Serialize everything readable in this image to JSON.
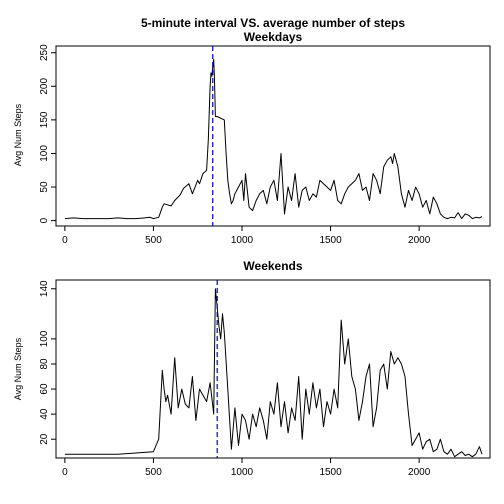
{
  "chart_data": [
    {
      "type": "line",
      "title": "5-minute interval VS. average number of steps",
      "subtitle": "Weekdays",
      "xlabel": "",
      "ylabel": "Avg Num Steps",
      "xlim": [
        -50,
        2400
      ],
      "ylim": [
        -8,
        260
      ],
      "xticks": [
        0,
        500,
        1000,
        1500,
        2000
      ],
      "yticks": [
        0,
        50,
        100,
        150,
        200,
        250
      ],
      "vline": {
        "x": 835,
        "color": "#0000cc",
        "style": "dashed"
      },
      "series": [
        {
          "color": "#000000",
          "x": [
            0,
            50,
            100,
            150,
            200,
            250,
            300,
            350,
            400,
            450,
            480,
            500,
            530,
            550,
            560,
            600,
            620,
            650,
            670,
            700,
            720,
            750,
            760,
            780,
            800,
            810,
            815,
            820,
            825,
            830,
            835,
            840,
            845,
            850,
            860,
            900,
            910,
            920,
            930,
            940,
            950,
            960,
            980,
            1000,
            1010,
            1020,
            1040,
            1060,
            1080,
            1100,
            1120,
            1140,
            1160,
            1180,
            1200,
            1220,
            1240,
            1260,
            1280,
            1300,
            1320,
            1340,
            1360,
            1380,
            1400,
            1420,
            1440,
            1460,
            1480,
            1500,
            1520,
            1540,
            1560,
            1580,
            1600,
            1620,
            1640,
            1660,
            1680,
            1700,
            1720,
            1740,
            1760,
            1780,
            1800,
            1820,
            1840,
            1850,
            1860,
            1880,
            1900,
            1920,
            1940,
            1960,
            1980,
            2000,
            2020,
            2040,
            2060,
            2080,
            2100,
            2120,
            2140,
            2160,
            2180,
            2200,
            2220,
            2240,
            2260,
            2280,
            2300,
            2320,
            2340,
            2355
          ],
          "y": [
            3,
            4,
            3,
            3,
            3,
            3,
            4,
            3,
            3,
            4,
            5,
            3,
            5,
            20,
            25,
            22,
            30,
            38,
            48,
            55,
            40,
            60,
            55,
            70,
            75,
            120,
            160,
            200,
            220,
            215,
            230,
            240,
            210,
            155,
            155,
            150,
            100,
            60,
            40,
            25,
            30,
            40,
            50,
            60,
            30,
            70,
            20,
            15,
            30,
            40,
            45,
            25,
            50,
            60,
            30,
            100,
            10,
            50,
            30,
            70,
            20,
            45,
            50,
            30,
            40,
            35,
            60,
            55,
            50,
            45,
            60,
            30,
            25,
            40,
            50,
            55,
            60,
            70,
            45,
            50,
            30,
            70,
            60,
            40,
            80,
            90,
            95,
            85,
            100,
            80,
            40,
            20,
            45,
            30,
            50,
            40,
            20,
            30,
            10,
            35,
            25,
            10,
            5,
            3,
            5,
            4,
            12,
            3,
            10,
            8,
            3,
            5,
            4,
            6
          ]
        }
      ]
    },
    {
      "type": "line",
      "title": "Weekends",
      "xlabel": "",
      "ylabel": "Avg Num Steps",
      "xlim": [
        -50,
        2400
      ],
      "ylim": [
        5,
        147
      ],
      "xticks": [
        0,
        500,
        1000,
        1500,
        2000
      ],
      "yticks": [
        20,
        40,
        60,
        80,
        100,
        140
      ],
      "vline": {
        "x": 860,
        "color": "#0000cc",
        "style": "dashed"
      },
      "series": [
        {
          "color": "#000000",
          "x": [
            0,
            100,
            200,
            300,
            400,
            500,
            530,
            550,
            560,
            570,
            580,
            600,
            620,
            640,
            660,
            680,
            700,
            720,
            740,
            760,
            780,
            800,
            820,
            840,
            850,
            860,
            870,
            880,
            890,
            900,
            920,
            940,
            960,
            980,
            1000,
            1020,
            1040,
            1060,
            1080,
            1100,
            1120,
            1140,
            1160,
            1180,
            1200,
            1220,
            1240,
            1260,
            1280,
            1300,
            1320,
            1340,
            1360,
            1380,
            1400,
            1420,
            1440,
            1460,
            1480,
            1500,
            1520,
            1540,
            1560,
            1580,
            1600,
            1620,
            1640,
            1660,
            1680,
            1700,
            1720,
            1740,
            1760,
            1780,
            1800,
            1820,
            1840,
            1860,
            1880,
            1900,
            1920,
            1940,
            1960,
            1980,
            2000,
            2020,
            2040,
            2060,
            2080,
            2100,
            2120,
            2140,
            2160,
            2180,
            2200,
            2220,
            2240,
            2260,
            2280,
            2300,
            2320,
            2340,
            2355
          ],
          "y": [
            8,
            8,
            8,
            8,
            9,
            10,
            20,
            75,
            60,
            50,
            55,
            40,
            85,
            45,
            60,
            48,
            45,
            70,
            35,
            60,
            55,
            50,
            65,
            40,
            140,
            125,
            110,
            100,
            120,
            105,
            60,
            12,
            45,
            15,
            40,
            35,
            20,
            40,
            30,
            45,
            35,
            20,
            50,
            40,
            65,
            30,
            50,
            25,
            45,
            35,
            70,
            20,
            60,
            40,
            65,
            45,
            60,
            30,
            50,
            40,
            60,
            45,
            115,
            80,
            100,
            70,
            60,
            35,
            50,
            70,
            80,
            30,
            45,
            75,
            80,
            60,
            90,
            80,
            85,
            80,
            70,
            40,
            15,
            20,
            25,
            12,
            18,
            20,
            10,
            12,
            20,
            10,
            8,
            12,
            6,
            8,
            10,
            7,
            8,
            6,
            8,
            14,
            8
          ]
        }
      ]
    }
  ]
}
